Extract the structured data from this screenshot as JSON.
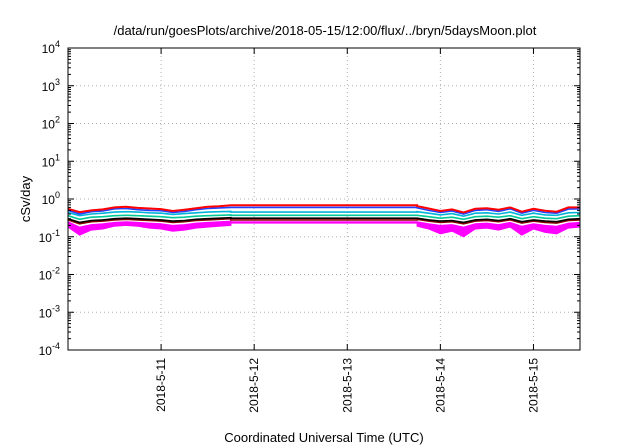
{
  "chart_data": {
    "type": "line",
    "title": "/data/run/goesPlots/archive/2018-05-15/12:00/flux/../bryn/5daysMoon.plot",
    "xlabel": "Coordinated Universal Time (UTC)",
    "ylabel": "cSv/day",
    "y_scale": "log",
    "ylim": [
      0.0001,
      10000
    ],
    "y_ticks": [
      {
        "base": "10",
        "exp": "-4"
      },
      {
        "base": "10",
        "exp": "-3"
      },
      {
        "base": "10",
        "exp": "-2"
      },
      {
        "base": "10",
        "exp": "-1"
      },
      {
        "base": "10",
        "exp": "0"
      },
      {
        "base": "10",
        "exp": "1"
      },
      {
        "base": "10",
        "exp": "2"
      },
      {
        "base": "10",
        "exp": "3"
      },
      {
        "base": "10",
        "exp": "4"
      }
    ],
    "xlim": [
      "2018-05-10T00:00",
      "2018-05-15T12:00"
    ],
    "x_ticks": [
      "2018-5-11",
      "2018-5-12",
      "2018-5-13",
      "2018-5-14",
      "2018-5-15"
    ],
    "grid": true,
    "legend": "none",
    "gap": {
      "start": "2018-05-11T18:00",
      "end": "2018-05-13T18:00"
    },
    "series": [
      {
        "color": "#ff00ff",
        "band": true,
        "flat_value": 0.25,
        "x": [
          "2018-05-10T00:00",
          "2018-05-10T03:00",
          "2018-05-10T06:00",
          "2018-05-10T09:00",
          "2018-05-10T12:00",
          "2018-05-10T15:00",
          "2018-05-10T18:00",
          "2018-05-10T21:00",
          "2018-05-11T00:00",
          "2018-05-11T03:00",
          "2018-05-11T06:00",
          "2018-05-11T09:00",
          "2018-05-11T12:00",
          "2018-05-11T15:00",
          "2018-05-11T18:00",
          "2018-05-13T18:00",
          "2018-05-13T21:00",
          "2018-05-14T00:00",
          "2018-05-14T03:00",
          "2018-05-14T06:00",
          "2018-05-14T09:00",
          "2018-05-14T12:00",
          "2018-05-14T15:00",
          "2018-05-14T18:00",
          "2018-05-14T21:00",
          "2018-05-15T00:00",
          "2018-05-15T03:00",
          "2018-05-15T06:00",
          "2018-05-15T09:00",
          "2018-05-15T12:00"
        ],
        "low": [
          0.18,
          0.11,
          0.15,
          0.16,
          0.19,
          0.2,
          0.19,
          0.17,
          0.16,
          0.14,
          0.15,
          0.17,
          0.18,
          0.19,
          0.2,
          0.19,
          0.16,
          0.12,
          0.14,
          0.1,
          0.16,
          0.17,
          0.15,
          0.18,
          0.11,
          0.16,
          0.13,
          0.12,
          0.17,
          0.18
        ],
        "high": [
          0.25,
          0.18,
          0.21,
          0.22,
          0.24,
          0.25,
          0.24,
          0.23,
          0.22,
          0.2,
          0.21,
          0.23,
          0.24,
          0.25,
          0.26,
          0.25,
          0.22,
          0.2,
          0.21,
          0.18,
          0.22,
          0.23,
          0.21,
          0.24,
          0.19,
          0.22,
          0.2,
          0.19,
          0.23,
          0.24
        ]
      },
      {
        "color": "#8b0000",
        "band": false,
        "flat_value": 0.28,
        "values": [
          0.28,
          0.22,
          0.25,
          0.26,
          0.28,
          0.29,
          0.28,
          0.27,
          0.26,
          0.24,
          0.25,
          0.27,
          0.28,
          0.29,
          0.3,
          0.29,
          0.26,
          0.24,
          0.25,
          0.22,
          0.26,
          0.27,
          0.25,
          0.28,
          0.23,
          0.26,
          0.24,
          0.23,
          0.27,
          0.28
        ]
      },
      {
        "color": "#000000",
        "band": false,
        "flat_value": 0.31,
        "values": [
          0.3,
          0.24,
          0.27,
          0.28,
          0.3,
          0.31,
          0.3,
          0.29,
          0.28,
          0.26,
          0.27,
          0.29,
          0.3,
          0.31,
          0.32,
          0.31,
          0.28,
          0.26,
          0.27,
          0.24,
          0.28,
          0.29,
          0.27,
          0.3,
          0.25,
          0.28,
          0.26,
          0.25,
          0.29,
          0.3
        ]
      },
      {
        "color": "#00c896",
        "band": false,
        "flat_value": 0.37,
        "values": [
          0.36,
          0.29,
          0.33,
          0.34,
          0.36,
          0.37,
          0.36,
          0.35,
          0.34,
          0.32,
          0.33,
          0.35,
          0.36,
          0.37,
          0.38,
          0.37,
          0.34,
          0.31,
          0.33,
          0.29,
          0.34,
          0.35,
          0.33,
          0.36,
          0.3,
          0.34,
          0.31,
          0.3,
          0.35,
          0.36
        ]
      },
      {
        "color": "#00b4d8",
        "band": false,
        "flat_value": 0.45,
        "values": [
          0.44,
          0.36,
          0.4,
          0.42,
          0.45,
          0.46,
          0.45,
          0.43,
          0.42,
          0.39,
          0.41,
          0.43,
          0.45,
          0.46,
          0.47,
          0.46,
          0.42,
          0.38,
          0.41,
          0.35,
          0.42,
          0.43,
          0.4,
          0.45,
          0.37,
          0.42,
          0.38,
          0.37,
          0.43,
          0.44
        ]
      },
      {
        "color": "#2040ff",
        "band": false,
        "flat_value": 0.6,
        "values": [
          0.5,
          0.4,
          0.46,
          0.48,
          0.55,
          0.56,
          0.52,
          0.5,
          0.49,
          0.44,
          0.47,
          0.52,
          0.56,
          0.58,
          0.6,
          0.58,
          0.5,
          0.44,
          0.48,
          0.4,
          0.5,
          0.52,
          0.47,
          0.55,
          0.42,
          0.5,
          0.44,
          0.42,
          0.54,
          0.55
        ]
      },
      {
        "color": "#ff0000",
        "band": false,
        "flat_value": 0.68,
        "values": [
          0.55,
          0.45,
          0.5,
          0.53,
          0.6,
          0.62,
          0.58,
          0.56,
          0.54,
          0.48,
          0.52,
          0.57,
          0.62,
          0.64,
          0.68,
          0.65,
          0.56,
          0.48,
          0.53,
          0.44,
          0.55,
          0.57,
          0.52,
          0.6,
          0.46,
          0.55,
          0.49,
          0.46,
          0.6,
          0.6
        ]
      }
    ]
  }
}
